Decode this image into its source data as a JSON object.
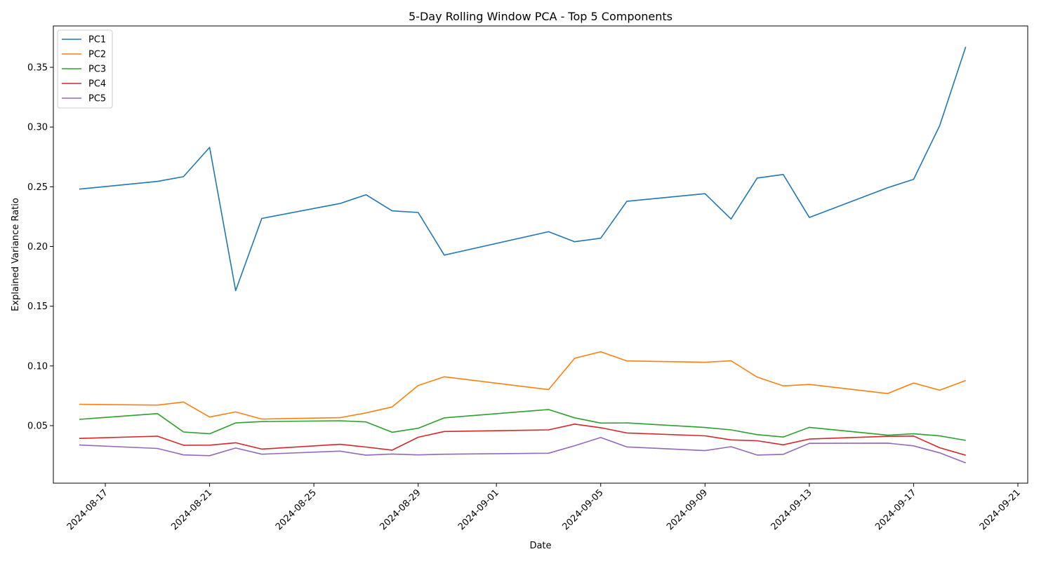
{
  "chart_data": {
    "type": "line",
    "title": "5-Day Rolling Window PCA - Top 5 Components",
    "xlabel": "Date",
    "ylabel": "Explained Variance Ratio",
    "xlim": [
      "2024-08-15",
      "2024-09-21"
    ],
    "ylim": [
      0.0,
      0.38
    ],
    "x_ticks": [
      "2024-08-17",
      "2024-08-21",
      "2024-08-25",
      "2024-08-29",
      "2024-09-01",
      "2024-09-05",
      "2024-09-09",
      "2024-09-13",
      "2024-09-17",
      "2024-09-21"
    ],
    "y_ticks": [
      0.05,
      0.1,
      0.15,
      0.2,
      0.25,
      0.3,
      0.35
    ],
    "y_tick_labels": [
      "0.05",
      "0.10",
      "0.15",
      "0.20",
      "0.25",
      "0.30",
      "0.35"
    ],
    "grid": false,
    "legend_position": "upper-left",
    "x": [
      "2024-08-16",
      "2024-08-19",
      "2024-08-20",
      "2024-08-21",
      "2024-08-22",
      "2024-08-23",
      "2024-08-26",
      "2024-08-27",
      "2024-08-28",
      "2024-08-29",
      "2024-08-30",
      "2024-09-03",
      "2024-09-04",
      "2024-09-05",
      "2024-09-06",
      "2024-09-09",
      "2024-09-10",
      "2024-09-11",
      "2024-09-12",
      "2024-09-13",
      "2024-09-16",
      "2024-09-17",
      "2024-09-18",
      "2024-09-19"
    ],
    "series": [
      {
        "name": "PC1",
        "color": "#1f77b4",
        "values": [
          0.248,
          0.2545,
          0.2585,
          0.283,
          0.163,
          0.2235,
          0.236,
          0.2433,
          0.2298,
          0.2285,
          0.1928,
          0.2124,
          0.204,
          0.2069,
          0.2378,
          0.2442,
          0.223,
          0.2573,
          0.2603,
          0.2243,
          0.2492,
          0.2562,
          0.3012,
          0.3672
        ]
      },
      {
        "name": "PC2",
        "color": "#ff7f0e",
        "values": [
          0.0679,
          0.0672,
          0.0698,
          0.0572,
          0.0615,
          0.0555,
          0.0567,
          0.0607,
          0.0657,
          0.0836,
          0.0909,
          0.0802,
          0.1064,
          0.1119,
          0.1042,
          0.1031,
          0.1043,
          0.0906,
          0.0833,
          0.0845,
          0.0769,
          0.0857,
          0.0797,
          0.0878
        ]
      },
      {
        "name": "PC3",
        "color": "#2ca02c",
        "values": [
          0.0553,
          0.0601,
          0.0447,
          0.0432,
          0.0523,
          0.0534,
          0.0541,
          0.0531,
          0.0445,
          0.0478,
          0.0565,
          0.0635,
          0.0566,
          0.0522,
          0.0523,
          0.0485,
          0.0465,
          0.0425,
          0.0405,
          0.0486,
          0.042,
          0.0432,
          0.0414,
          0.0377
        ]
      },
      {
        "name": "PC4",
        "color": "#d62728",
        "values": [
          0.0393,
          0.0412,
          0.0336,
          0.0337,
          0.0357,
          0.0304,
          0.0344,
          0.0321,
          0.0295,
          0.0403,
          0.0451,
          0.0465,
          0.0513,
          0.0483,
          0.0439,
          0.0415,
          0.0381,
          0.0374,
          0.034,
          0.0388,
          0.0411,
          0.0413,
          0.0315,
          0.0252
        ]
      },
      {
        "name": "PC5",
        "color": "#9467bd",
        "values": [
          0.0338,
          0.0309,
          0.0255,
          0.0249,
          0.0313,
          0.0261,
          0.0287,
          0.0253,
          0.0263,
          0.0255,
          0.0261,
          0.0269,
          0.0332,
          0.0401,
          0.0322,
          0.0291,
          0.0324,
          0.0254,
          0.026,
          0.0352,
          0.0354,
          0.0331,
          0.0272,
          0.0188
        ]
      }
    ]
  }
}
